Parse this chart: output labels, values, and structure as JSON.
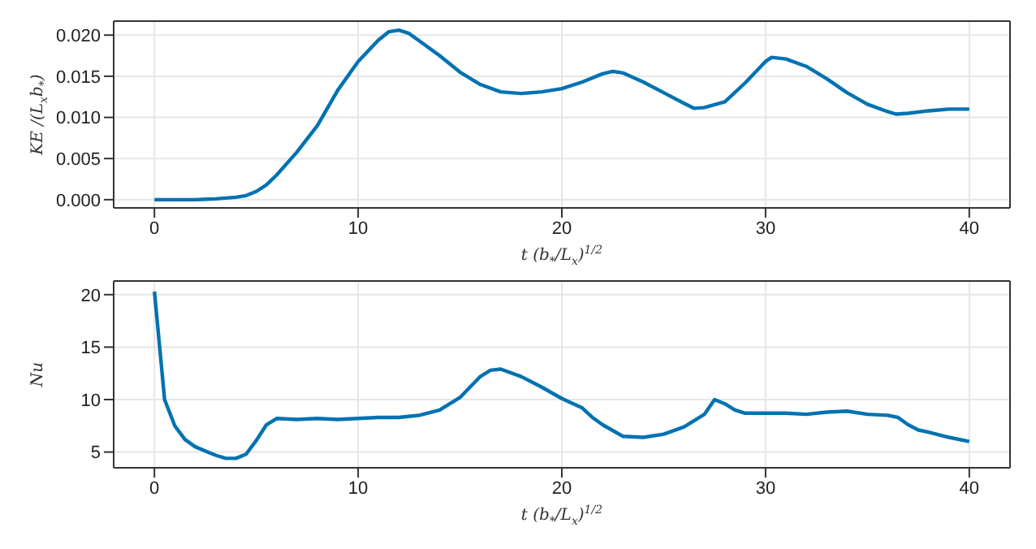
{
  "chart_data": [
    {
      "type": "line",
      "xlabel": "t (b$_{*}$/L$_{x}$)$^{1/2}$",
      "ylabel": "KE /(L$_{x}$b$_{*}$)",
      "grid": true,
      "legend": false,
      "marker": "none",
      "line_style": "solid",
      "xlim": [
        -2,
        42
      ],
      "xticks": [
        0,
        10,
        20,
        30,
        40
      ],
      "ylim": [
        -0.001,
        0.0217
      ],
      "yticks": [
        {
          "value": 0,
          "label": "0.000"
        },
        {
          "value": 0.005,
          "label": "0.005"
        },
        {
          "value": 0.01,
          "label": "0.010"
        },
        {
          "value": 0.015,
          "label": "0.015"
        },
        {
          "value": 0.02,
          "label": "0.020"
        }
      ],
      "x": [
        0,
        2,
        3,
        4,
        4.5,
        5,
        5.5,
        6,
        7,
        8,
        9,
        10,
        11,
        11.5,
        12,
        12.5,
        13,
        14,
        15,
        16,
        17,
        18,
        19,
        20,
        21,
        22,
        22.5,
        23,
        24,
        25,
        26,
        26.5,
        27,
        28,
        29,
        30,
        30.3,
        31,
        32,
        33,
        34,
        35,
        36,
        36.4,
        37,
        38,
        39,
        40
      ],
      "series": [
        {
          "color": "#0072b2",
          "values": [
            0,
            0,
            0.0001,
            0.0003,
            0.0005,
            0.001,
            0.0018,
            0.003,
            0.0058,
            0.009,
            0.0133,
            0.0168,
            0.0194,
            0.0204,
            0.0206,
            0.0202,
            0.0193,
            0.0175,
            0.0155,
            0.014,
            0.0131,
            0.0129,
            0.0131,
            0.0135,
            0.0143,
            0.0153,
            0.0156,
            0.0154,
            0.0143,
            0.013,
            0.0117,
            0.0111,
            0.0112,
            0.0119,
            0.0142,
            0.0168,
            0.0173,
            0.0171,
            0.0162,
            0.0147,
            0.013,
            0.0116,
            0.0107,
            0.0104,
            0.0105,
            0.0108,
            0.011,
            0.011
          ]
        }
      ]
    },
    {
      "type": "line",
      "xlabel": "t (b$_{*}$/L$_{x}$)$^{1/2}$",
      "ylabel": "Nu",
      "grid": true,
      "legend": false,
      "marker": "none",
      "line_style": "solid",
      "xlim": [
        -2,
        42
      ],
      "xticks": [
        0,
        10,
        20,
        30,
        40
      ],
      "ylim": [
        3.5,
        21.3
      ],
      "yticks": [
        5,
        10,
        15,
        20
      ],
      "x": [
        0,
        0.5,
        1,
        1.5,
        2,
        3,
        3.5,
        4,
        4.5,
        5,
        5.5,
        6,
        7,
        8,
        9,
        10,
        11,
        12,
        13,
        14,
        15,
        16,
        16.5,
        17,
        18,
        19,
        20,
        21,
        21.5,
        22,
        23,
        24,
        25,
        26,
        27,
        27.5,
        28,
        28.5,
        29,
        30,
        31,
        32,
        33,
        34,
        35,
        36,
        36.5,
        37,
        37.5,
        38,
        39,
        40
      ],
      "series": [
        {
          "color": "#0072b2",
          "values": [
            20.3,
            10,
            7.5,
            6.2,
            5.5,
            4.7,
            4.4,
            4.4,
            4.8,
            6.1,
            7.6,
            8.2,
            8.1,
            8.2,
            8.1,
            8.2,
            8.3,
            8.3,
            8.5,
            9.0,
            10.2,
            12.2,
            12.8,
            12.9,
            12.2,
            11.2,
            10.1,
            9.2,
            8.3,
            7.6,
            6.5,
            6.4,
            6.7,
            7.4,
            8.6,
            10,
            9.6,
            9,
            8.7,
            8.7,
            8.7,
            8.6,
            8.8,
            8.9,
            8.6,
            8.5,
            8.3,
            7.6,
            7.1,
            6.9,
            6.4,
            6.0
          ]
        }
      ]
    }
  ]
}
